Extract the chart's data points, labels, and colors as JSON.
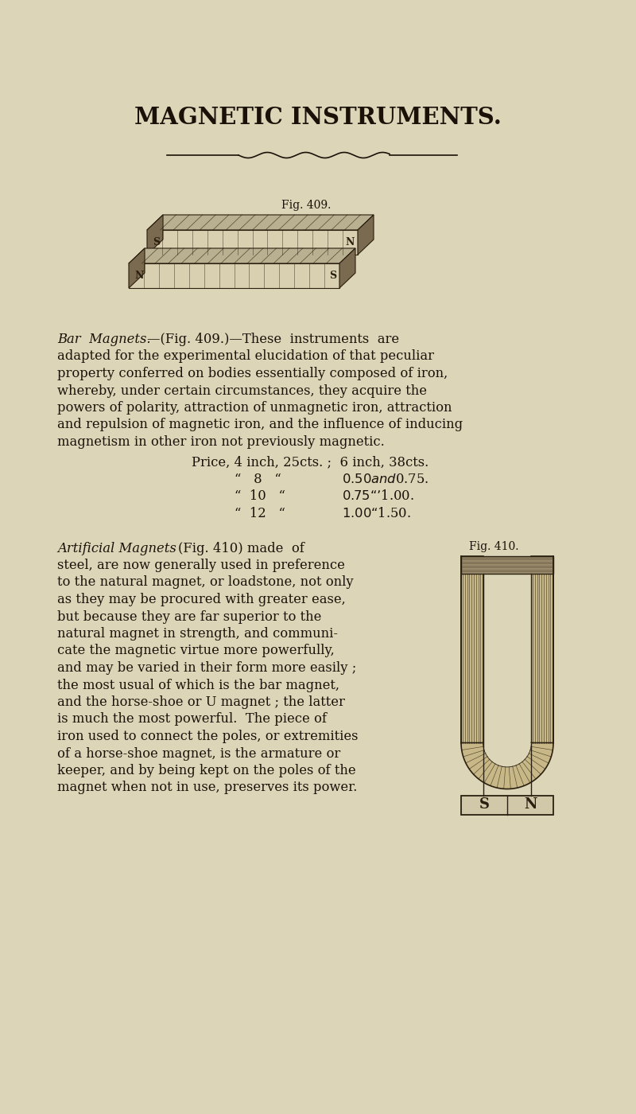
{
  "bg_color": "#ddd5b8",
  "text_color": "#1a1208",
  "title": "MAGNETIC INSTRUMENTS.",
  "fig409_label": "Fig. 409.",
  "fig410_label": "Fig. 410.",
  "para1_italic": "Bar  Magnets.",
  "price_line1": "Price, 4 inch, 25cts. ;  6 inch, 38cts.",
  "price_line2": "\"   8   \"              $0.50 and $0.75.",
  "price_line3": "\"  10   \"              $0.75    \"    ’$1.00.",
  "price_line4": "\"  12   \"              $1.00    \"    $1.50.",
  "para2_italic": "Artificial Magnets",
  "bg_color_inner": "#ddd5b8",
  "dark": "#2a2010",
  "lighter": "#c8b888",
  "keeper_color": "#d0c8a8"
}
